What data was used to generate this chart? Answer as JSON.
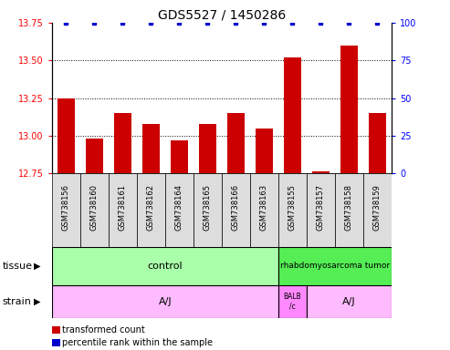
{
  "title": "GDS5527 / 1450286",
  "samples": [
    "GSM738156",
    "GSM738160",
    "GSM738161",
    "GSM738162",
    "GSM738164",
    "GSM738165",
    "GSM738166",
    "GSM738163",
    "GSM738155",
    "GSM738157",
    "GSM738158",
    "GSM738159"
  ],
  "transformed_counts": [
    13.25,
    12.98,
    13.15,
    13.08,
    12.97,
    13.08,
    13.15,
    13.05,
    13.52,
    12.76,
    13.6,
    13.15
  ],
  "percentile_ranks": [
    100,
    100,
    100,
    100,
    100,
    100,
    100,
    100,
    100,
    100,
    100,
    100
  ],
  "ylim_left": [
    12.75,
    13.75
  ],
  "ylim_right": [
    0,
    100
  ],
  "yticks_left": [
    12.75,
    13.0,
    13.25,
    13.5,
    13.75
  ],
  "yticks_right": [
    0,
    25,
    50,
    75,
    100
  ],
  "bar_color": "#cc0000",
  "blue_color": "#0000cc",
  "tissue_control_n": 8,
  "tissue_tumor_n": 4,
  "tissue_control_label": "control",
  "tissue_tumor_label": "rhabdomyosarcoma tumor",
  "tissue_control_color": "#aaffaa",
  "tissue_tumor_color": "#55ee55",
  "strain_aj1_n": 8,
  "strain_balbc_n": 1,
  "strain_aj2_n": 3,
  "strain_color": "#ffbbff",
  "strain_balbc_color": "#ff88ff",
  "strain_aj1_label": "A/J",
  "strain_balbc_label": "BALB\n/c",
  "strain_aj2_label": "A/J",
  "legend_red_label": "transformed count",
  "legend_blue_label": "percentile rank within the sample",
  "title_fontsize": 10,
  "tick_fontsize": 7,
  "label_fontsize": 8,
  "sample_label_fontsize": 6,
  "grid_dotted_at": [
    13.0,
    13.25,
    13.5
  ],
  "bar_width": 0.6,
  "xlim": [
    -0.5,
    11.5
  ]
}
